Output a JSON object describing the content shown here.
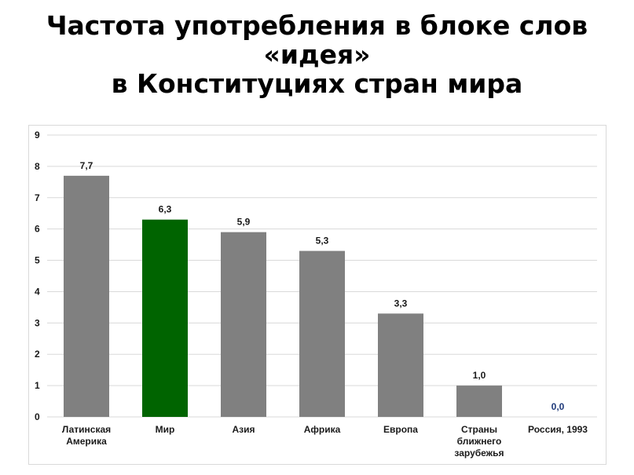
{
  "title": {
    "line1": "Частота употребления в блоке слов",
    "line2": "«идея»",
    "line3": "в Конституциях стран мира"
  },
  "colors": {
    "bar_default": "#808080",
    "bar_highlight": "#006400",
    "label_default": "#1a1a1a",
    "label_zero": "#1f3a7a",
    "grid": "#d9d9d9"
  },
  "chart_data": {
    "type": "bar",
    "title": "Частота употребления в блоке слов «идея» в Конституциях стран мира",
    "xlabel": "",
    "ylabel": "",
    "ylim": [
      0,
      9
    ],
    "yticks": [
      "0",
      "1",
      "2",
      "3",
      "4",
      "5",
      "6",
      "7",
      "8",
      "9"
    ],
    "grid": true,
    "categories": [
      "Латинская Америка",
      "Мир",
      "Азия",
      "Африка",
      "Европа",
      "Страны ближнего зарубежья",
      "Россия, 1993"
    ],
    "category_lines": [
      [
        "Латинская",
        "Америка"
      ],
      [
        "Мир"
      ],
      [
        "Азия"
      ],
      [
        "Африка"
      ],
      [
        "Европа"
      ],
      [
        "Страны",
        "ближнего",
        "зарубежья"
      ],
      [
        "Россия, 1993"
      ]
    ],
    "values": [
      7.7,
      6.3,
      5.9,
      5.3,
      3.3,
      1.0,
      0.0
    ],
    "data_labels": [
      "7,7",
      "6,3",
      "5,9",
      "5,3",
      "3,3",
      "1,0",
      "0,0"
    ],
    "highlight_index": 1
  }
}
